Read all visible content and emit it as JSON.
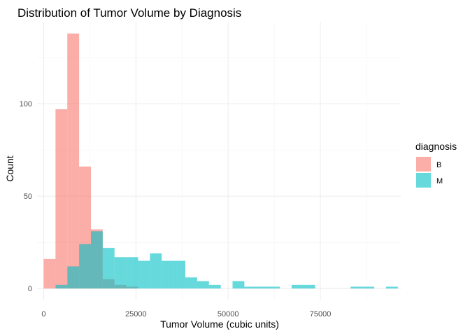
{
  "chart_data": {
    "type": "bar",
    "subtype": "overlapping-histogram",
    "title": "Distribution of Tumor Volume by Diagnosis",
    "xlabel": "Tumor Volume (cubic units)",
    "ylabel": "Count",
    "xlim": [
      -1800,
      96800
    ],
    "ylim": [
      -6,
      144
    ],
    "x_ticks": [
      0,
      25000,
      50000,
      75000
    ],
    "x_tick_labels": [
      "0",
      "25000",
      "50000",
      "75000"
    ],
    "y_ticks": [
      0,
      50,
      100
    ],
    "y_tick_labels": [
      "0",
      "50",
      "100"
    ],
    "bin_width": 3200,
    "grid": true,
    "legend": {
      "title": "diagnosis",
      "position": "right"
    },
    "bin_starts": [
      0,
      3200,
      6400,
      9600,
      12800,
      16000,
      19200,
      22400,
      25600,
      28800,
      32000,
      35200,
      38400,
      41600,
      44800,
      48000,
      51200,
      54400,
      57600,
      60800,
      64000,
      67200,
      70400,
      73600,
      76800,
      80000,
      83200,
      86400,
      89600,
      92800
    ],
    "series": [
      {
        "name": "B",
        "color": "#F8766D",
        "opacity": 0.6,
        "values": [
          16,
          97,
          138,
          66,
          32,
          5,
          2,
          1,
          0,
          0,
          0,
          0,
          0,
          0,
          0,
          0,
          0,
          0,
          0,
          0,
          0,
          0,
          0,
          0,
          0,
          0,
          0,
          0,
          0,
          0
        ]
      },
      {
        "name": "M",
        "color": "#00BFC4",
        "opacity": 0.6,
        "values": [
          0,
          2,
          12,
          24,
          31,
          22,
          17,
          17,
          15,
          19,
          15,
          15,
          6,
          4,
          2,
          0,
          4,
          1,
          1,
          1,
          0,
          2,
          2,
          0,
          0,
          0,
          1,
          1,
          0,
          1
        ]
      }
    ]
  }
}
